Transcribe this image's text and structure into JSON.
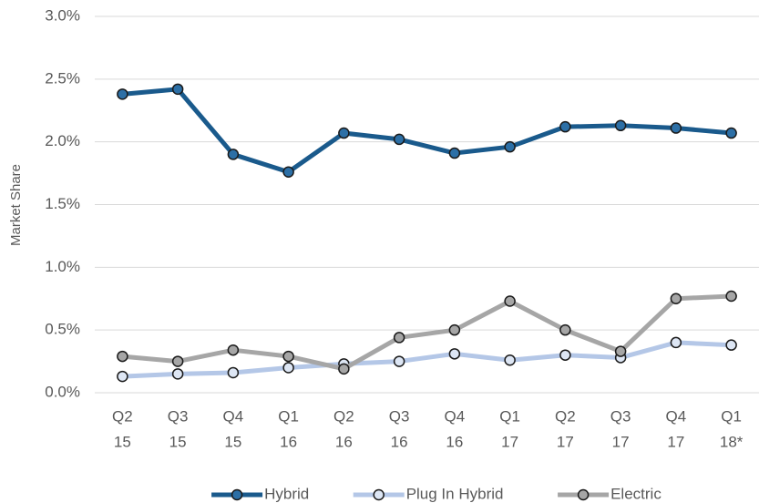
{
  "chart_data": {
    "type": "line",
    "y_label": "Market Share",
    "categories": [
      [
        "Q2",
        "15"
      ],
      [
        "Q3",
        "15"
      ],
      [
        "Q4",
        "15"
      ],
      [
        "Q1",
        "16"
      ],
      [
        "Q2",
        "16"
      ],
      [
        "Q3",
        "16"
      ],
      [
        "Q4",
        "16"
      ],
      [
        "Q1",
        "17"
      ],
      [
        "Q2",
        "17"
      ],
      [
        "Q3",
        "17"
      ],
      [
        "Q4",
        "17"
      ],
      [
        "Q1",
        "18*"
      ]
    ],
    "series": [
      {
        "name": "Hybrid",
        "color": "#1a5a8c",
        "marker_color": "#2c6fa6",
        "values": [
          2.38,
          2.42,
          1.9,
          1.76,
          2.07,
          2.02,
          1.91,
          1.96,
          2.12,
          2.13,
          2.11,
          2.07
        ]
      },
      {
        "name": "Plug In Hybrid",
        "color": "#b4c7e7",
        "marker_color": "#dde6f4",
        "values": [
          0.13,
          0.15,
          0.16,
          0.2,
          0.23,
          0.25,
          0.31,
          0.26,
          0.3,
          0.28,
          0.4,
          0.38
        ]
      },
      {
        "name": "Electric",
        "color": "#a6a6a6",
        "marker_color": "#a6a6a6",
        "values": [
          0.29,
          0.25,
          0.34,
          0.29,
          0.19,
          0.44,
          0.5,
          0.73,
          0.5,
          0.33,
          0.75,
          0.77
        ]
      }
    ],
    "ylim": [
      0,
      3.0
    ],
    "yticks": [
      {
        "value": 0,
        "label": "0.0%"
      },
      {
        "value": 0.5,
        "label": "0.5%"
      },
      {
        "value": 1.0,
        "label": "1.0%"
      },
      {
        "value": 1.5,
        "label": "1.5%"
      },
      {
        "value": 2.0,
        "label": "2.0%"
      },
      {
        "value": 2.5,
        "label": "2.5%"
      },
      {
        "value": 3.0,
        "label": "3.0%"
      }
    ],
    "grid": true,
    "legend": "bottom"
  }
}
